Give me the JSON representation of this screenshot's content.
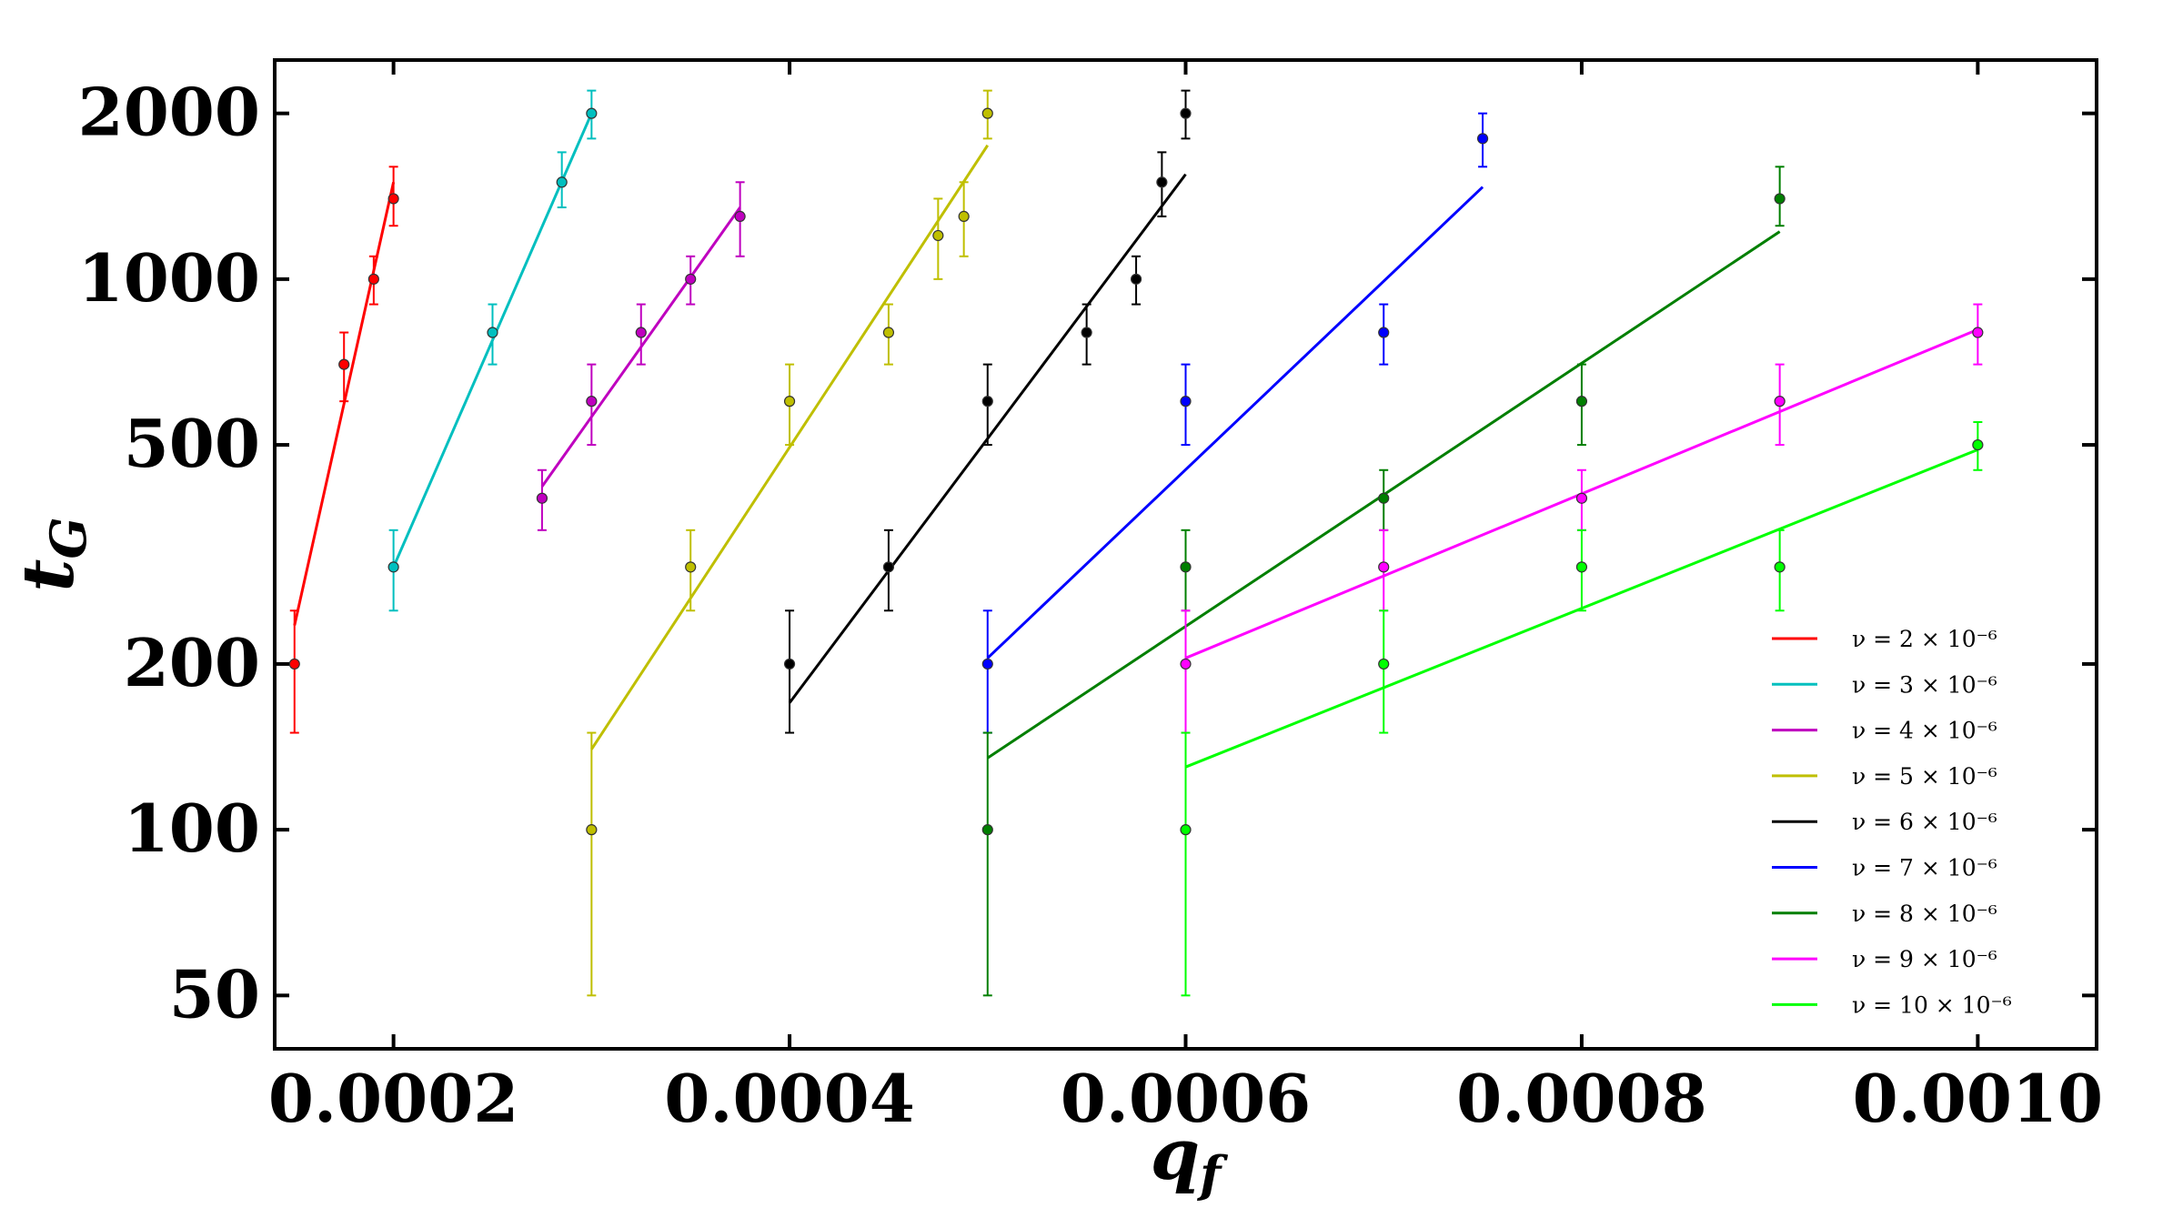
{
  "chart_data": {
    "type": "scatter",
    "xlabel": "q",
    "xlabel_sub": "f",
    "ylabel": "t",
    "ylabel_sub": "G",
    "xlim": [
      0.00014,
      0.00106
    ],
    "ylim": [
      40,
      2500
    ],
    "yscale": "log",
    "x_ticks": [
      0.0002,
      0.0004,
      0.0006,
      0.0008,
      0.001
    ],
    "x_tick_labels": [
      "0.0002",
      "0.0004",
      "0.0006",
      "0.0008",
      "0.0010"
    ],
    "y_ticks": [
      50,
      100,
      200,
      500,
      1000,
      2000
    ],
    "y_tick_labels": [
      "50",
      "100",
      "200",
      "500",
      "1000",
      "2000"
    ],
    "grid": false,
    "legend_position": "lower-right",
    "series": [
      {
        "name": "ν = 2 × 10⁻⁶",
        "color": "#ff0000",
        "x": [
          0.00015,
          0.000175,
          0.00019,
          0.0002
        ],
        "y": [
          200,
          700,
          1000,
          1400
        ],
        "err_low": [
          150,
          600,
          900,
          1250
        ],
        "err_high": [
          250,
          800,
          1100,
          1600
        ],
        "fit": {
          "x": [
            0.00015,
            0.0002
          ],
          "y": [
            235,
            1500
          ]
        }
      },
      {
        "name": "ν = 3 × 10⁻⁶",
        "color": "#00bfbf",
        "x": [
          0.0002,
          0.00025,
          0.000285,
          0.0003
        ],
        "y": [
          300,
          800,
          1500,
          2000
        ],
        "err_low": [
          250,
          700,
          1350,
          1800
        ],
        "err_high": [
          350,
          900,
          1700,
          2200
        ],
        "fit": {
          "x": [
            0.0002,
            0.0003
          ],
          "y": [
            300,
            2000
          ]
        }
      },
      {
        "name": "ν = 4 × 10⁻⁶",
        "color": "#bf00bf",
        "x": [
          0.000275,
          0.0003,
          0.000325,
          0.00035,
          0.000375
        ],
        "y": [
          400,
          600,
          800,
          1000,
          1300
        ],
        "err_low": [
          350,
          500,
          700,
          900,
          1100
        ],
        "err_high": [
          450,
          700,
          900,
          1100,
          1500
        ],
        "fit": {
          "x": [
            0.000275,
            0.000375
          ],
          "y": [
            420,
            1350
          ]
        }
      },
      {
        "name": "ν = 5 × 10⁻⁶",
        "color": "#bfbf00",
        "x": [
          0.0003,
          0.00035,
          0.0004,
          0.00045,
          0.000475,
          0.000488,
          0.0005
        ],
        "y": [
          100,
          300,
          600,
          800,
          1200,
          1300,
          2000
        ],
        "err_low": [
          50,
          250,
          500,
          700,
          1000,
          1100,
          1800
        ],
        "err_high": [
          150,
          350,
          700,
          900,
          1400,
          1500,
          2200
        ],
        "fit": {
          "x": [
            0.0003,
            0.0005
          ],
          "y": [
            140,
            1750
          ]
        }
      },
      {
        "name": "ν = 6 × 10⁻⁶",
        "color": "#000000",
        "x": [
          0.0004,
          0.00045,
          0.0005,
          0.00055,
          0.000575,
          0.000588,
          0.0006
        ],
        "y": [
          200,
          300,
          600,
          800,
          1000,
          1500,
          2000
        ],
        "err_low": [
          150,
          250,
          500,
          700,
          900,
          1300,
          1800
        ],
        "err_high": [
          250,
          350,
          700,
          900,
          1100,
          1700,
          2200
        ],
        "fit": {
          "x": [
            0.0004,
            0.0006
          ],
          "y": [
            170,
            1550
          ]
        }
      },
      {
        "name": "ν = 7 × 10⁻⁶",
        "color": "#0000ff",
        "x": [
          0.0005,
          0.0006,
          0.0007,
          0.00075
        ],
        "y": [
          200,
          600,
          800,
          1800
        ],
        "err_low": [
          150,
          500,
          700,
          1600
        ],
        "err_high": [
          250,
          700,
          900,
          2000
        ],
        "fit": {
          "x": [
            0.0005,
            0.00075
          ],
          "y": [
            205,
            1470
          ]
        }
      },
      {
        "name": "ν = 8 × 10⁻⁶",
        "color": "#007f00",
        "x": [
          0.0005,
          0.0006,
          0.0007,
          0.0008,
          0.0009
        ],
        "y": [
          100,
          300,
          400,
          600,
          1400
        ],
        "err_low": [
          50,
          250,
          350,
          500,
          1250
        ],
        "err_high": [
          150,
          350,
          450,
          700,
          1600
        ],
        "fit": {
          "x": [
            0.0005,
            0.0009
          ],
          "y": [
            135,
            1220
          ]
        }
      },
      {
        "name": "ν = 9 × 10⁻⁶",
        "color": "#ff00ff",
        "x": [
          0.0006,
          0.0007,
          0.0008,
          0.0009,
          0.001
        ],
        "y": [
          200,
          300,
          400,
          600,
          800
        ],
        "err_low": [
          150,
          250,
          350,
          500,
          700
        ],
        "err_high": [
          250,
          350,
          450,
          700,
          900
        ],
        "fit": {
          "x": [
            0.0006,
            0.001
          ],
          "y": [
            205,
            810
          ]
        }
      },
      {
        "name": "ν = 10 × 10⁻⁶",
        "color": "#00ff00",
        "x": [
          0.0006,
          0.0007,
          0.0008,
          0.0009,
          0.001
        ],
        "y": [
          100,
          200,
          300,
          300,
          500
        ],
        "err_low": [
          50,
          150,
          250,
          250,
          450
        ],
        "err_high": [
          150,
          250,
          350,
          350,
          550
        ],
        "fit": {
          "x": [
            0.0006,
            0.001
          ],
          "y": [
            130,
            490
          ]
        }
      }
    ]
  }
}
